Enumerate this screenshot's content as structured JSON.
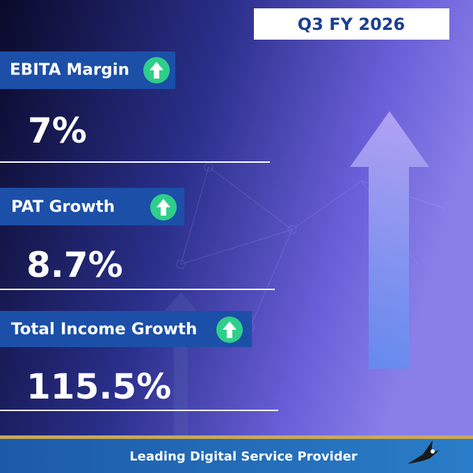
{
  "period": "Q3 FY 2026",
  "metrics": [
    {
      "label": "EBITA Margin",
      "value": "7%"
    },
    {
      "label": "PAT Growth",
      "value": "8.7%"
    },
    {
      "label": "Total Income Growth",
      "value": "115.5%"
    }
  ],
  "footer": "Leading Digital Service Provider"
}
